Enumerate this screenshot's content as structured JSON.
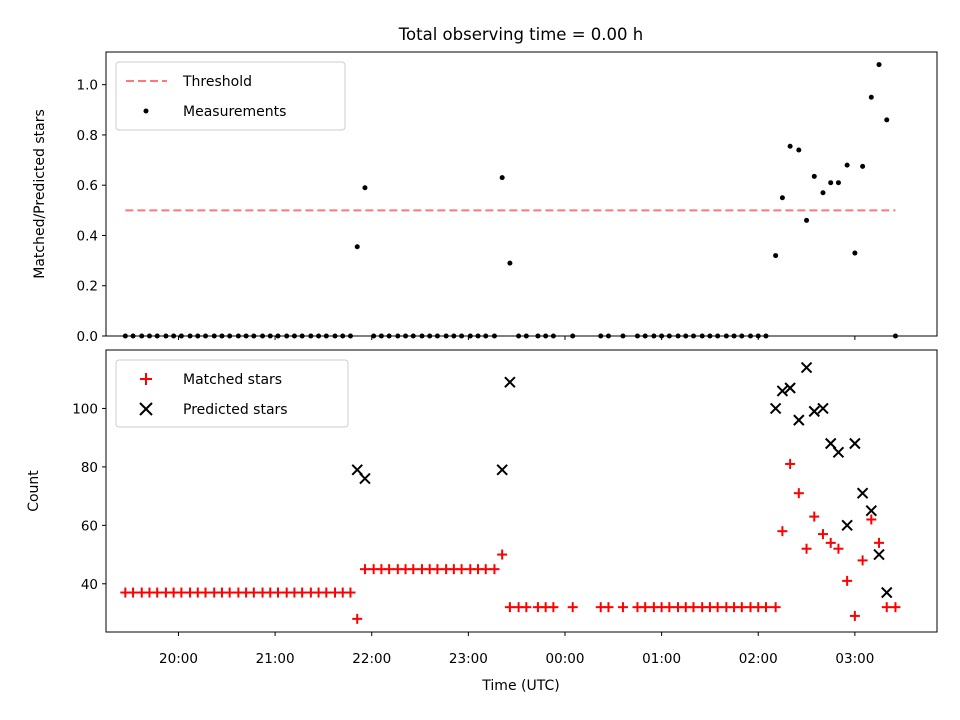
{
  "chart_data": [
    {
      "type": "scatter",
      "title": "Total observing time = 0.00 h",
      "xlabel": "",
      "ylabel": "Matched/Predicted stars",
      "ylim": [
        0,
        1.13
      ],
      "yticks": [
        "0.0",
        "0.2",
        "0.4",
        "0.6",
        "0.8",
        "1.0"
      ],
      "xlim": [
        19.25,
        3.85
      ],
      "legend_position": "top-left",
      "legend": [
        {
          "label": "Threshold",
          "style": "dashed-line",
          "color": "#ff7777"
        },
        {
          "label": "Measurements",
          "style": "dot",
          "color": "#000000"
        }
      ],
      "threshold": {
        "value": 0.5,
        "x_start": 19.45,
        "x_end": 3.42,
        "color": "#ff7777"
      },
      "series": [
        {
          "name": "Measurements",
          "color": "#000000",
          "points": [
            [
              19.45,
              0
            ],
            [
              19.53,
              0
            ],
            [
              19.62,
              0
            ],
            [
              19.7,
              0
            ],
            [
              19.78,
              0
            ],
            [
              19.87,
              0
            ],
            [
              19.95,
              0
            ],
            [
              20.03,
              0
            ],
            [
              20.12,
              0
            ],
            [
              20.2,
              0
            ],
            [
              20.28,
              0
            ],
            [
              20.37,
              0
            ],
            [
              20.45,
              0
            ],
            [
              20.53,
              0
            ],
            [
              20.62,
              0
            ],
            [
              20.7,
              0
            ],
            [
              20.78,
              0
            ],
            [
              20.87,
              0
            ],
            [
              20.95,
              0
            ],
            [
              21.03,
              0
            ],
            [
              21.12,
              0
            ],
            [
              21.2,
              0
            ],
            [
              21.28,
              0
            ],
            [
              21.37,
              0
            ],
            [
              21.45,
              0
            ],
            [
              21.53,
              0
            ],
            [
              21.62,
              0
            ],
            [
              21.7,
              0
            ],
            [
              21.78,
              0
            ],
            [
              21.85,
              0.355
            ],
            [
              21.93,
              0.59
            ],
            [
              22.02,
              0
            ],
            [
              22.1,
              0
            ],
            [
              22.18,
              0
            ],
            [
              22.27,
              0
            ],
            [
              22.35,
              0
            ],
            [
              22.43,
              0
            ],
            [
              22.52,
              0
            ],
            [
              22.6,
              0
            ],
            [
              22.68,
              0
            ],
            [
              22.77,
              0
            ],
            [
              22.85,
              0
            ],
            [
              22.93,
              0
            ],
            [
              23.02,
              0
            ],
            [
              23.1,
              0
            ],
            [
              23.18,
              0
            ],
            [
              23.27,
              0
            ],
            [
              23.35,
              0.63
            ],
            [
              23.43,
              0.29
            ],
            [
              23.52,
              0
            ],
            [
              23.6,
              0
            ],
            [
              23.72,
              0
            ],
            [
              23.8,
              0
            ],
            [
              23.88,
              0
            ],
            [
              24.08,
              0
            ],
            [
              24.37,
              0
            ],
            [
              24.45,
              0
            ],
            [
              24.6,
              0
            ],
            [
              24.75,
              0
            ],
            [
              24.83,
              0
            ],
            [
              24.92,
              0
            ],
            [
              25.0,
              0
            ],
            [
              25.08,
              0
            ],
            [
              25.17,
              0
            ],
            [
              25.25,
              0
            ],
            [
              25.33,
              0
            ],
            [
              25.42,
              0
            ],
            [
              25.5,
              0
            ],
            [
              25.58,
              0
            ],
            [
              25.67,
              0
            ],
            [
              25.75,
              0
            ],
            [
              25.83,
              0
            ],
            [
              25.92,
              0
            ],
            [
              26.0,
              0
            ],
            [
              26.08,
              0
            ],
            [
              26.18,
              0.32
            ],
            [
              26.25,
              0.55
            ],
            [
              26.33,
              0.755
            ],
            [
              26.42,
              0.74
            ],
            [
              26.5,
              0.46
            ],
            [
              26.58,
              0.635
            ],
            [
              26.67,
              0.57
            ],
            [
              26.75,
              0.61
            ],
            [
              26.83,
              0.61
            ],
            [
              26.92,
              0.68
            ],
            [
              27.0,
              0.33
            ],
            [
              27.08,
              0.675
            ],
            [
              27.17,
              0.95
            ],
            [
              27.25,
              1.08
            ],
            [
              27.33,
              0.86
            ],
            [
              27.42,
              0
            ]
          ]
        }
      ]
    },
    {
      "type": "scatter",
      "xlabel": "Time (UTC)",
      "ylabel": "Count",
      "ylim": [
        23.5,
        120
      ],
      "yticks": [
        "40",
        "60",
        "80",
        "100"
      ],
      "xlim": [
        19.25,
        3.85
      ],
      "xticks": [
        "20:00",
        "21:00",
        "22:00",
        "23:00",
        "00:00",
        "01:00",
        "02:00",
        "03:00"
      ],
      "legend_position": "top-left",
      "legend": [
        {
          "label": "Matched stars",
          "style": "plus",
          "color": "#ff0000"
        },
        {
          "label": "Predicted stars",
          "style": "cross",
          "color": "#000000"
        }
      ],
      "series": [
        {
          "name": "Matched stars",
          "color": "#ff0000",
          "points": [
            [
              19.45,
              37
            ],
            [
              19.53,
              37
            ],
            [
              19.62,
              37
            ],
            [
              19.7,
              37
            ],
            [
              19.78,
              37
            ],
            [
              19.87,
              37
            ],
            [
              19.95,
              37
            ],
            [
              20.03,
              37
            ],
            [
              20.12,
              37
            ],
            [
              20.2,
              37
            ],
            [
              20.28,
              37
            ],
            [
              20.37,
              37
            ],
            [
              20.45,
              37
            ],
            [
              20.53,
              37
            ],
            [
              20.62,
              37
            ],
            [
              20.7,
              37
            ],
            [
              20.78,
              37
            ],
            [
              20.87,
              37
            ],
            [
              20.95,
              37
            ],
            [
              21.03,
              37
            ],
            [
              21.12,
              37
            ],
            [
              21.2,
              37
            ],
            [
              21.28,
              37
            ],
            [
              21.37,
              37
            ],
            [
              21.45,
              37
            ],
            [
              21.53,
              37
            ],
            [
              21.62,
              37
            ],
            [
              21.7,
              37
            ],
            [
              21.78,
              37
            ],
            [
              21.85,
              28
            ],
            [
              21.93,
              45
            ],
            [
              22.02,
              45
            ],
            [
              22.1,
              45
            ],
            [
              22.18,
              45
            ],
            [
              22.27,
              45
            ],
            [
              22.35,
              45
            ],
            [
              22.43,
              45
            ],
            [
              22.52,
              45
            ],
            [
              22.6,
              45
            ],
            [
              22.68,
              45
            ],
            [
              22.77,
              45
            ],
            [
              22.85,
              45
            ],
            [
              22.93,
              45
            ],
            [
              23.02,
              45
            ],
            [
              23.1,
              45
            ],
            [
              23.18,
              45
            ],
            [
              23.27,
              45
            ],
            [
              23.35,
              50
            ],
            [
              23.43,
              32
            ],
            [
              23.52,
              32
            ],
            [
              23.6,
              32
            ],
            [
              23.72,
              32
            ],
            [
              23.8,
              32
            ],
            [
              23.88,
              32
            ],
            [
              24.08,
              32
            ],
            [
              24.37,
              32
            ],
            [
              24.45,
              32
            ],
            [
              24.6,
              32
            ],
            [
              24.75,
              32
            ],
            [
              24.83,
              32
            ],
            [
              24.92,
              32
            ],
            [
              25.0,
              32
            ],
            [
              25.08,
              32
            ],
            [
              25.17,
              32
            ],
            [
              25.25,
              32
            ],
            [
              25.33,
              32
            ],
            [
              25.42,
              32
            ],
            [
              25.5,
              32
            ],
            [
              25.58,
              32
            ],
            [
              25.67,
              32
            ],
            [
              25.75,
              32
            ],
            [
              25.83,
              32
            ],
            [
              25.92,
              32
            ],
            [
              26.0,
              32
            ],
            [
              26.08,
              32
            ],
            [
              26.18,
              32
            ],
            [
              26.25,
              58
            ],
            [
              26.33,
              81
            ],
            [
              26.42,
              71
            ],
            [
              26.5,
              52
            ],
            [
              26.58,
              63
            ],
            [
              26.67,
              57
            ],
            [
              26.75,
              54
            ],
            [
              26.83,
              52
            ],
            [
              26.92,
              41
            ],
            [
              27.0,
              29
            ],
            [
              27.08,
              48
            ],
            [
              27.17,
              62
            ],
            [
              27.25,
              54
            ],
            [
              27.33,
              32
            ],
            [
              27.42,
              32
            ]
          ]
        },
        {
          "name": "Predicted stars",
          "color": "#000000",
          "points": [
            [
              21.85,
              79
            ],
            [
              21.93,
              76
            ],
            [
              23.35,
              79
            ],
            [
              23.43,
              109
            ],
            [
              26.18,
              100
            ],
            [
              26.25,
              106
            ],
            [
              26.33,
              107
            ],
            [
              26.42,
              96
            ],
            [
              26.5,
              114
            ],
            [
              26.58,
              99
            ],
            [
              26.67,
              100
            ],
            [
              26.75,
              88
            ],
            [
              26.83,
              85
            ],
            [
              26.92,
              60
            ],
            [
              27.0,
              88
            ],
            [
              27.08,
              71
            ],
            [
              27.17,
              65
            ],
            [
              27.25,
              50
            ],
            [
              27.33,
              37
            ]
          ]
        }
      ]
    }
  ]
}
